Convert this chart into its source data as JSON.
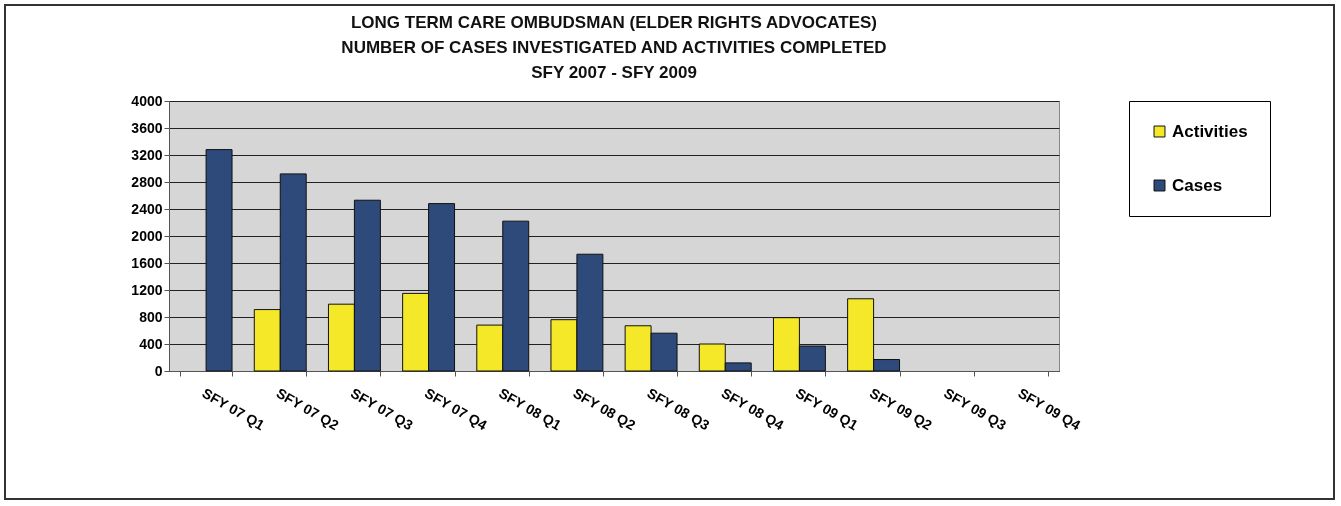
{
  "chart_data": {
    "type": "bar",
    "title": [
      "LONG TERM CARE OMBUDSMAN (ELDER RIGHTS ADVOCATES)",
      "NUMBER OF CASES INVESTIGATED AND ACTIVITIES COMPLETED",
      "SFY 2007 - SFY 2009"
    ],
    "categories": [
      "SFY 07 Q1",
      "SFY 07 Q2",
      "SFY 07 Q3",
      "SFY 07 Q4",
      "SFY 08 Q1",
      "SFY 08 Q2",
      "SFY 08 Q3",
      "SFY 08 Q4",
      "SFY 09 Q1",
      "SFY 09 Q2",
      "SFY 09 Q3",
      "SFY 09 Q4"
    ],
    "series": [
      {
        "name": "Activities",
        "color": "#f5e829",
        "values": [
          null,
          910,
          990,
          1150,
          680,
          760,
          670,
          400,
          790,
          1070,
          null,
          null
        ]
      },
      {
        "name": "Cases",
        "color": "#2d4a7a",
        "values": [
          3280,
          2920,
          2530,
          2480,
          2220,
          1730,
          560,
          120,
          370,
          170,
          null,
          null
        ]
      }
    ],
    "ylim": [
      0,
      4000
    ],
    "yticks": [
      0,
      400,
      800,
      1200,
      1600,
      2000,
      2400,
      2800,
      3200,
      3600,
      4000
    ],
    "grid": "y",
    "legend": "right"
  }
}
